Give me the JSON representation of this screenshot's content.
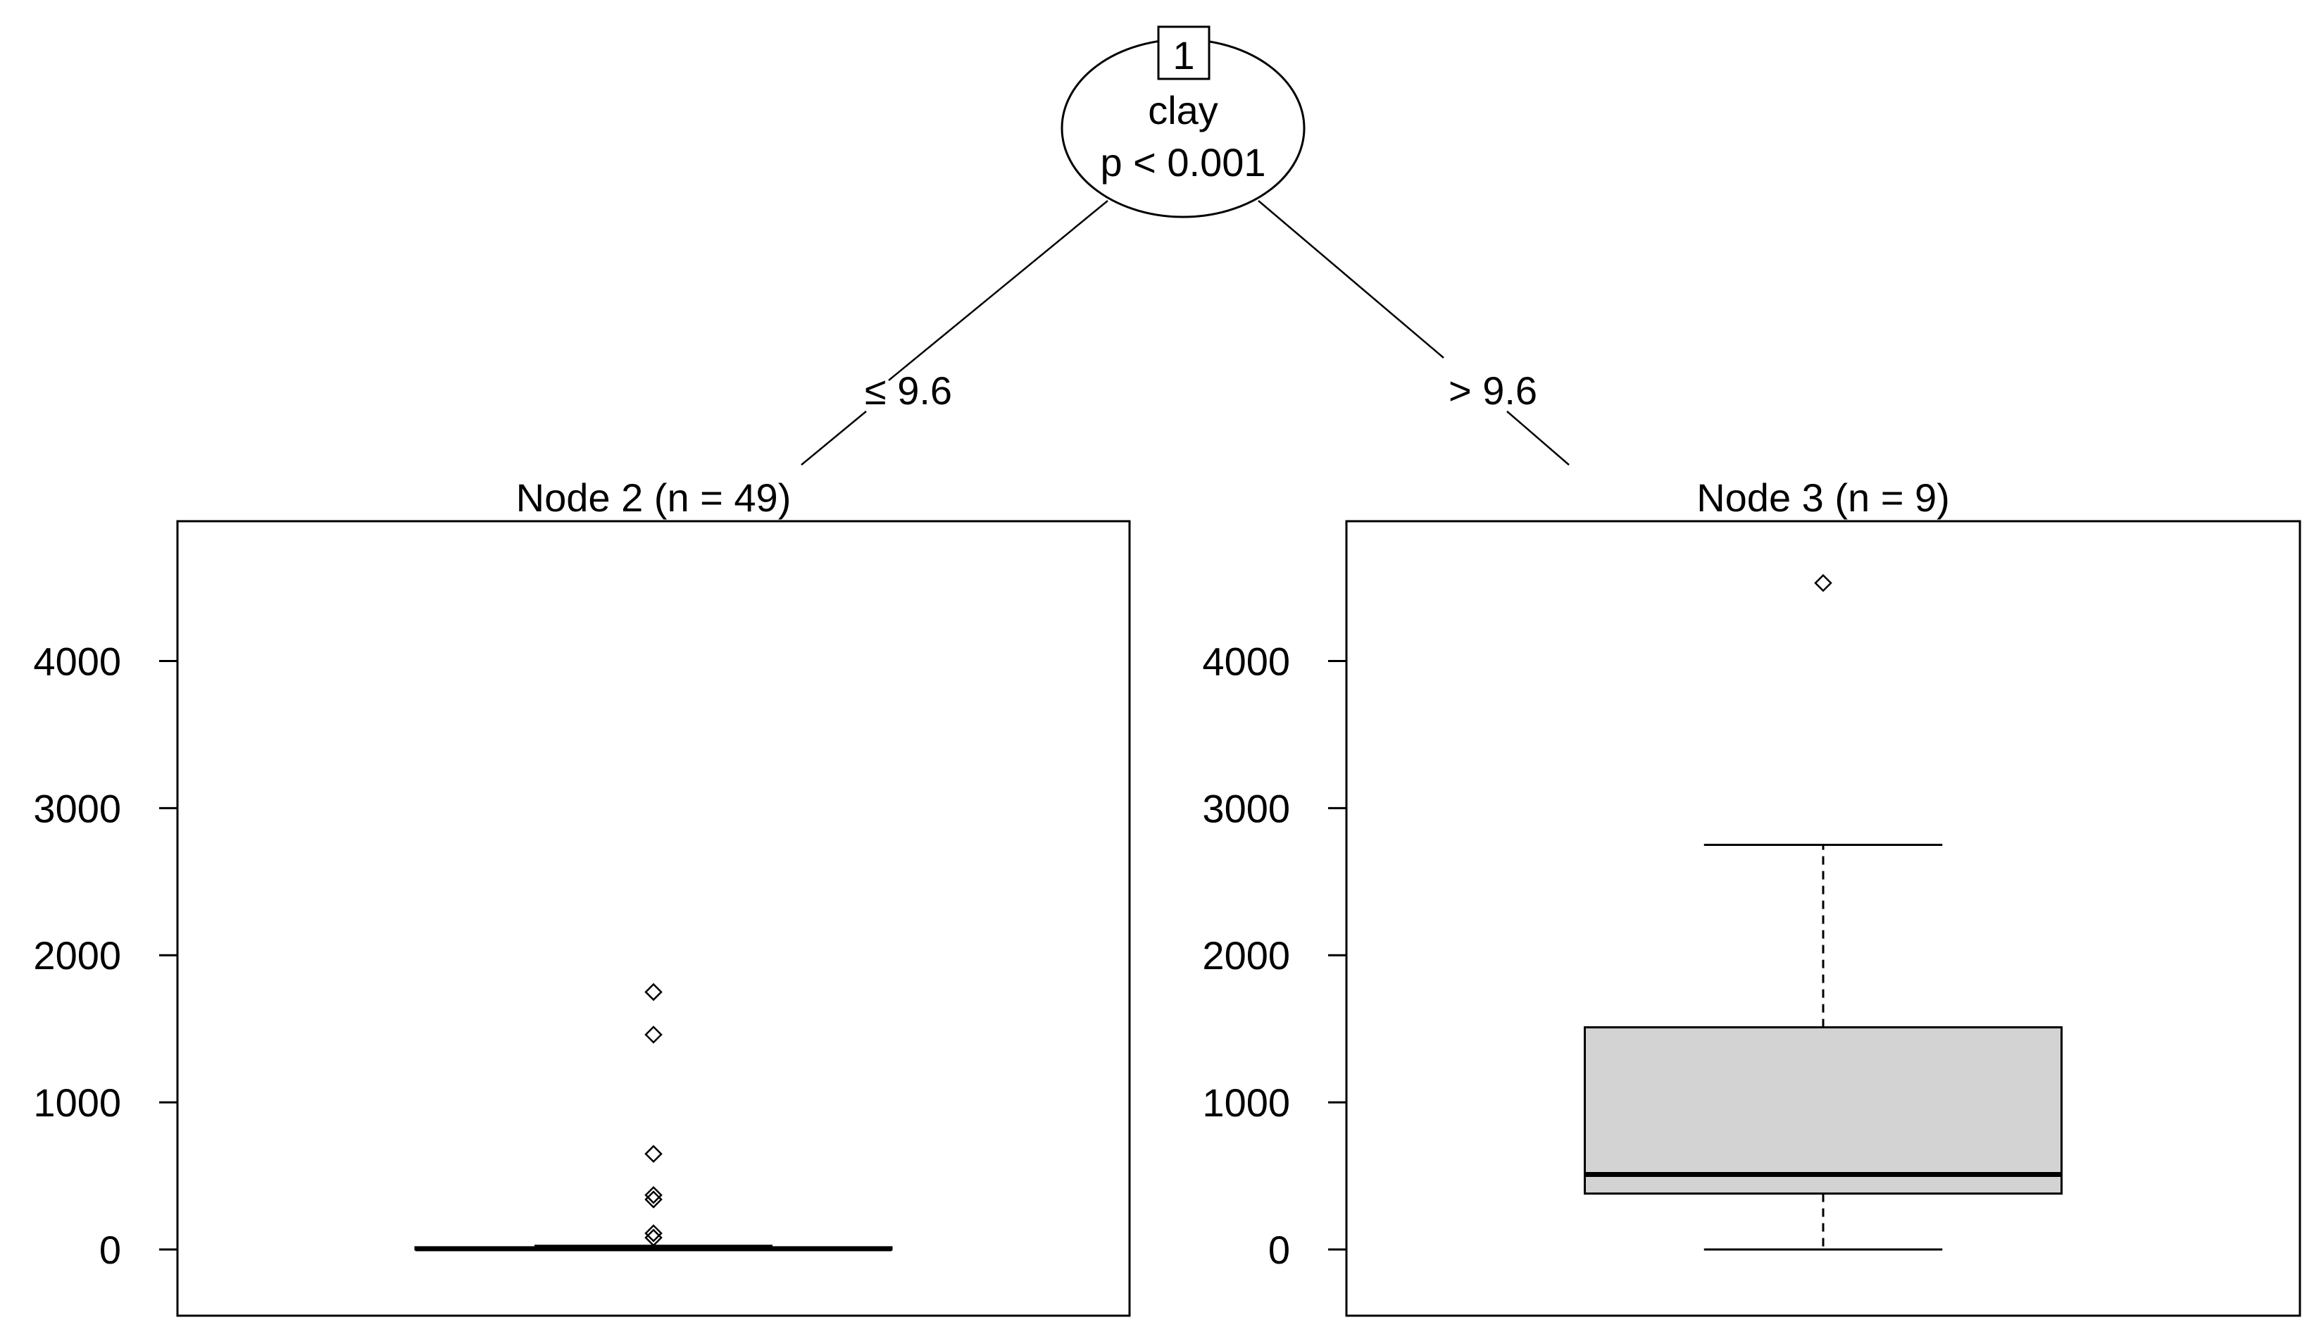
{
  "root_node": {
    "id": "1",
    "variable": "clay",
    "p_value": "p < 0.001"
  },
  "edges": {
    "left_label": "≤ 9.6",
    "right_label": "> 9.6"
  },
  "chart_data": [
    {
      "type": "boxplot",
      "title": "Node 2 (n = 49)",
      "n": 49,
      "ylim": [
        -450,
        4950
      ],
      "y_ticks": [
        0,
        1000,
        2000,
        3000,
        4000
      ],
      "y_tick_labels": [
        "0",
        "1000",
        "2000",
        "3000",
        "4000"
      ],
      "whisker_low": 0,
      "q1": 0,
      "median": 5,
      "q3": 15,
      "whisker_high": 25,
      "outliers": [
        80,
        110,
        340,
        370,
        650,
        1460,
        1750
      ],
      "box_fill": "#d3d3d3",
      "grid": false
    },
    {
      "type": "boxplot",
      "title": "Node 3 (n = 9)",
      "n": 9,
      "ylim": [
        -450,
        4950
      ],
      "y_ticks": [
        0,
        1000,
        2000,
        3000,
        4000
      ],
      "y_tick_labels": [
        "0",
        "1000",
        "2000",
        "3000",
        "4000"
      ],
      "whisker_low": 0,
      "q1": 380,
      "median": 510,
      "q3": 1510,
      "whisker_high": 2750,
      "outliers": [
        4530
      ],
      "box_fill": "#d3d3d3",
      "grid": false
    }
  ]
}
